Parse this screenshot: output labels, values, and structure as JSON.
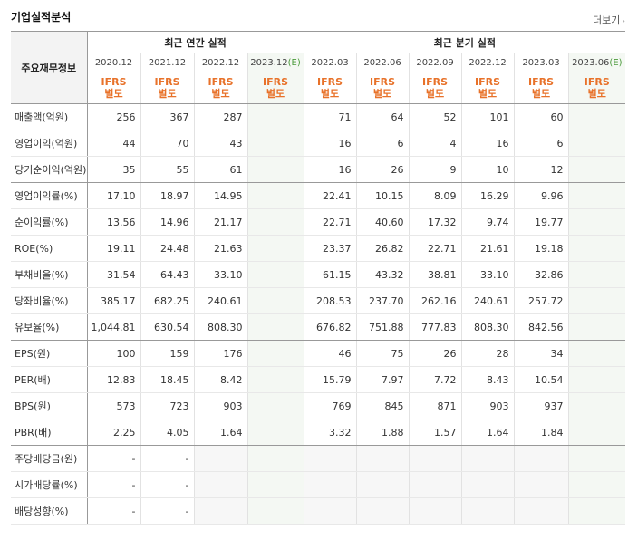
{
  "title": "기업실적분석",
  "more_label": "더보기",
  "more_arrow": "›",
  "row_header": "주요재무정보",
  "groups": {
    "annual": "최근 연간 실적",
    "quarterly": "최근 분기 실적"
  },
  "periods": [
    {
      "label": "2020.12"
    },
    {
      "label": "2021.12"
    },
    {
      "label": "2022.12"
    },
    {
      "label": "2023.12",
      "est": "(E)"
    },
    {
      "label": "2022.03"
    },
    {
      "label": "2022.06"
    },
    {
      "label": "2022.09"
    },
    {
      "label": "2022.12"
    },
    {
      "label": "2023.03"
    },
    {
      "label": "2023.06",
      "est": "(E)"
    }
  ],
  "ifrs": {
    "top": "IFRS",
    "bottom": "별도"
  },
  "rows": [
    {
      "label": "매출액(억원)",
      "values": [
        "256",
        "367",
        "287",
        "",
        "71",
        "64",
        "52",
        "101",
        "60",
        ""
      ]
    },
    {
      "label": "영업이익(억원)",
      "values": [
        "44",
        "70",
        "43",
        "",
        "16",
        "6",
        "4",
        "16",
        "6",
        ""
      ]
    },
    {
      "label": "당기순이익(억원)",
      "values": [
        "35",
        "55",
        "61",
        "",
        "16",
        "26",
        "9",
        "10",
        "12",
        ""
      ]
    },
    {
      "label": "영업이익률(%)",
      "values": [
        "17.10",
        "18.97",
        "14.95",
        "",
        "22.41",
        "10.15",
        "8.09",
        "16.29",
        "9.96",
        ""
      ]
    },
    {
      "label": "순이익률(%)",
      "values": [
        "13.56",
        "14.96",
        "21.17",
        "",
        "22.71",
        "40.60",
        "17.32",
        "9.74",
        "19.77",
        ""
      ]
    },
    {
      "label": "ROE(%)",
      "values": [
        "19.11",
        "24.48",
        "21.63",
        "",
        "23.37",
        "26.82",
        "22.71",
        "21.61",
        "19.18",
        ""
      ]
    },
    {
      "label": "부채비율(%)",
      "values": [
        "31.54",
        "64.43",
        "33.10",
        "",
        "61.15",
        "43.32",
        "38.81",
        "33.10",
        "32.86",
        ""
      ]
    },
    {
      "label": "당좌비율(%)",
      "values": [
        "385.17",
        "682.25",
        "240.61",
        "",
        "208.53",
        "237.70",
        "262.16",
        "240.61",
        "257.72",
        ""
      ]
    },
    {
      "label": "유보율(%)",
      "values": [
        "1,044.81",
        "630.54",
        "808.30",
        "",
        "676.82",
        "751.88",
        "777.83",
        "808.30",
        "842.56",
        ""
      ]
    },
    {
      "label": "EPS(원)",
      "values": [
        "100",
        "159",
        "176",
        "",
        "46",
        "75",
        "26",
        "28",
        "34",
        ""
      ]
    },
    {
      "label": "PER(배)",
      "values": [
        "12.83",
        "18.45",
        "8.42",
        "",
        "15.79",
        "7.97",
        "7.72",
        "8.43",
        "10.54",
        ""
      ]
    },
    {
      "label": "BPS(원)",
      "values": [
        "573",
        "723",
        "903",
        "",
        "769",
        "845",
        "871",
        "903",
        "937",
        ""
      ]
    },
    {
      "label": "PBR(배)",
      "values": [
        "2.25",
        "4.05",
        "1.64",
        "",
        "3.32",
        "1.88",
        "1.57",
        "1.64",
        "1.84",
        ""
      ]
    },
    {
      "label": "주당배당금(원)",
      "values": [
        "-",
        "-",
        "",
        "",
        "",
        "",
        "",
        "",
        "",
        ""
      ]
    },
    {
      "label": "시가배당률(%)",
      "values": [
        "-",
        "-",
        "",
        "",
        "",
        "",
        "",
        "",
        "",
        ""
      ]
    },
    {
      "label": "배당성향(%)",
      "values": [
        "-",
        "-",
        "",
        "",
        "",
        "",
        "",
        "",
        "",
        ""
      ]
    }
  ]
}
